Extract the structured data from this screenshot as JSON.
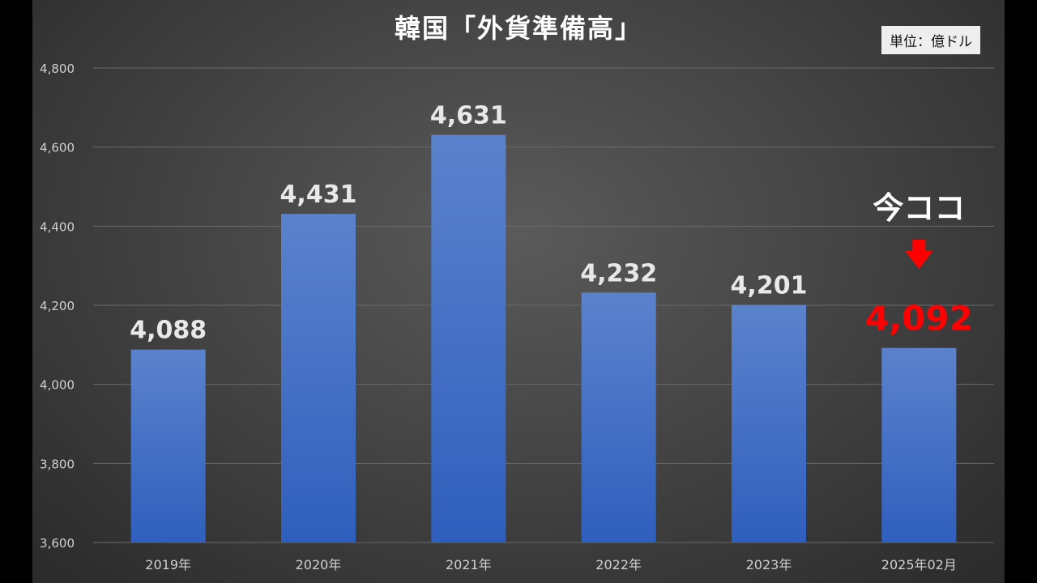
{
  "chart_data": {
    "type": "bar",
    "title": "韓国「外貨準備高」",
    "unit_label": "単位：億ドル",
    "categories": [
      "2019年",
      "2020年",
      "2021年",
      "2022年",
      "2023年",
      "2025年02月"
    ],
    "values": [
      4088,
      4431,
      4631,
      4232,
      4201,
      4092
    ],
    "value_labels": [
      "4,088",
      "4,431",
      "4,631",
      "4,232",
      "4,201",
      "4,092"
    ],
    "ylim": [
      3600,
      4800
    ],
    "yticks": [
      3600,
      3800,
      4000,
      4200,
      4400,
      4600,
      4800
    ],
    "ytick_labels": [
      "3,600",
      "3,800",
      "4,000",
      "4,200",
      "4,400",
      "4,600",
      "4,800"
    ],
    "grid": true,
    "highlight_index": 5,
    "annotation": {
      "text": "今ココ",
      "arrow": "down-arrow",
      "highlight_color": "#ff0000"
    },
    "colors": {
      "bar_top": "#5b82cc",
      "bar_bottom": "#2f5fbd",
      "label": "#e8e8e8",
      "axis_text": "#d0d0d0",
      "grid": "#6a6a6a"
    }
  }
}
